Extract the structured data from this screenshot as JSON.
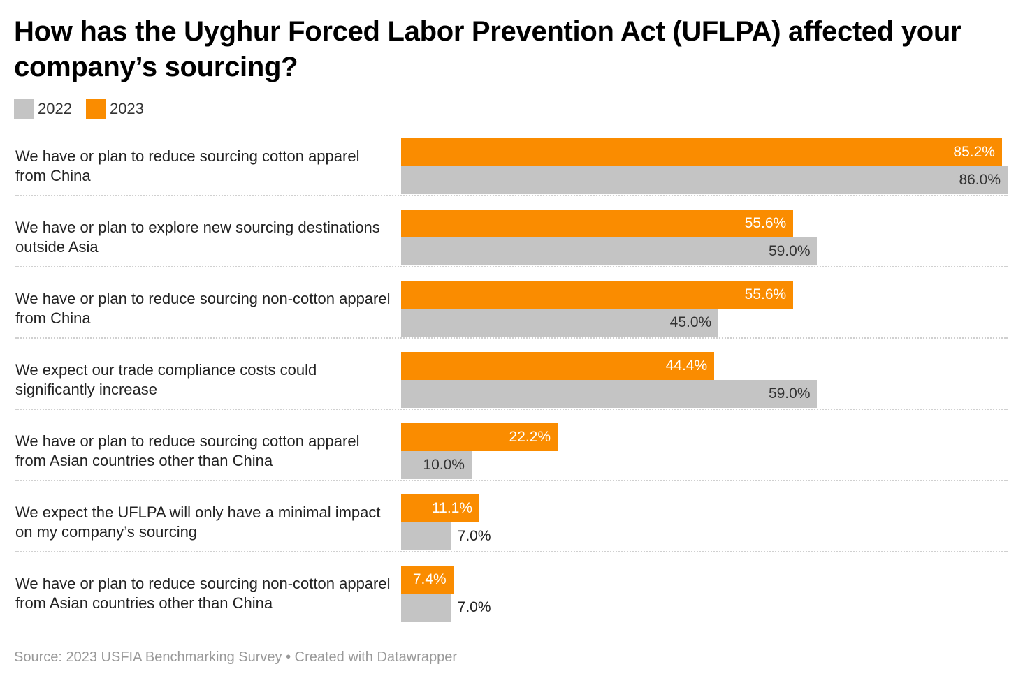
{
  "chart_data": {
    "type": "bar",
    "orientation": "horizontal",
    "title": "How has the Uyghur Forced Labor Prevention Act (UFLPA) affected your company’s sourcing?",
    "legend": [
      {
        "name": "2022",
        "color": "#c4c4c4"
      },
      {
        "name": "2023",
        "color": "#fa8c00"
      }
    ],
    "legend_position": "top-left",
    "categories": [
      "We have or plan to reduce sourcing cotton apparel from China",
      "We have or plan to explore new sourcing destinations outside Asia",
      "We have or plan to reduce sourcing non-cotton apparel from China",
      "We expect our trade compliance costs could significantly increase",
      "We have or plan to reduce sourcing cotton apparel from Asian countries other than China",
      "We expect the UFLPA will only have a minimal impact on my company’s sourcing",
      "We have or plan to reduce sourcing non-cotton apparel from Asian countries other than China"
    ],
    "series": [
      {
        "name": "2023",
        "color": "#fa8c00",
        "values": [
          85.2,
          55.6,
          55.6,
          44.4,
          22.2,
          11.1,
          7.4
        ],
        "labels": [
          "85.2%",
          "55.6%",
          "55.6%",
          "44.4%",
          "22.2%",
          "11.1%",
          "7.4%"
        ]
      },
      {
        "name": "2022",
        "color": "#c4c4c4",
        "values": [
          86.0,
          59.0,
          45.0,
          59.0,
          10.0,
          7.0,
          7.0
        ],
        "labels": [
          "86.0%",
          "59.0%",
          "45.0%",
          "59.0%",
          "10.0%",
          "7.0%",
          "7.0%"
        ]
      }
    ],
    "unit": "%",
    "xlim": [
      0,
      86
    ]
  },
  "source": "Source: 2023 USFIA Benchmarking Survey • Created with Datawrapper"
}
